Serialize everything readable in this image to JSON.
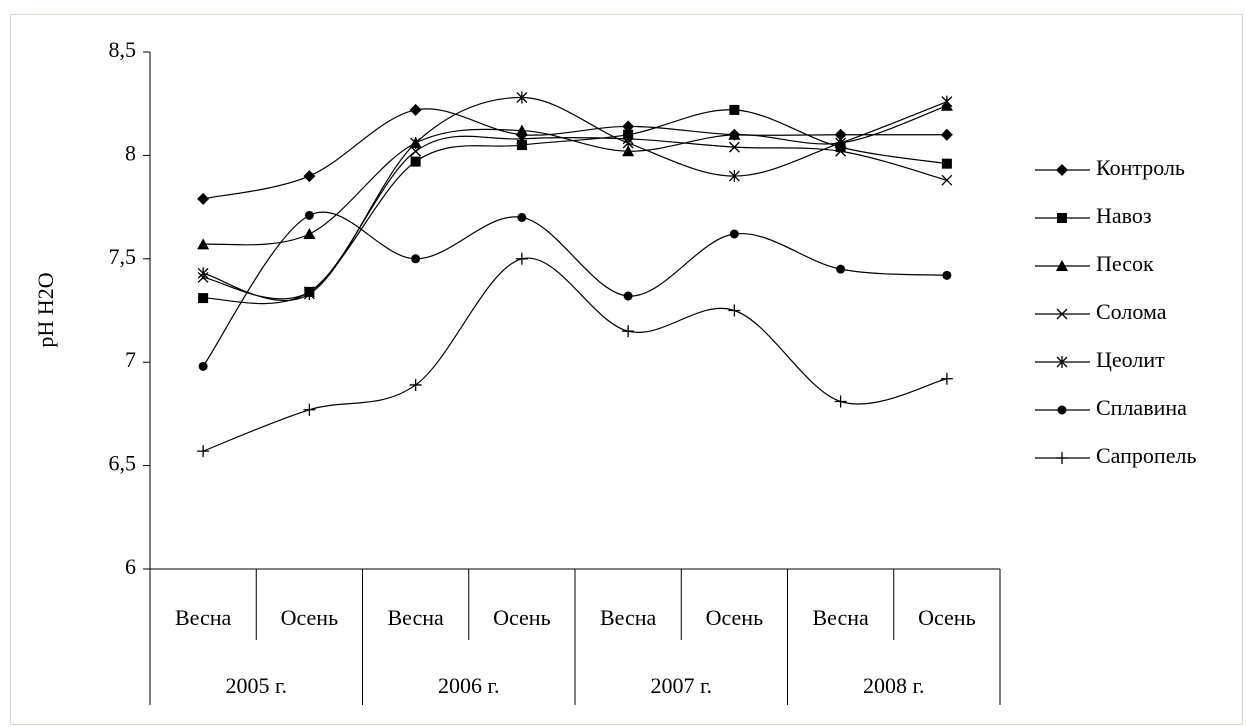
{
  "chart_data": {
    "type": "line",
    "y_label": "pH H2O",
    "categories": [
      "Весна",
      "Осень",
      "Весна",
      "Осень",
      "Весна",
      "Осень",
      "Весна",
      "Осень"
    ],
    "groups": [
      "2005 г.",
      "2006 г.",
      "2007 г.",
      "2008 г."
    ],
    "ylim": [
      6,
      8.5
    ],
    "yticks": [
      6,
      {
        "value": 6.5,
        "label": "6,5"
      },
      7,
      {
        "value": 7.5,
        "label": "7,5"
      },
      8,
      {
        "value": 8.5,
        "label": "8,5"
      }
    ],
    "smooth": true,
    "series": [
      {
        "name": "Контроль",
        "color": "#000000",
        "marker": "diamond",
        "values": [
          7.79,
          7.9,
          8.22,
          8.1,
          8.14,
          8.1,
          8.1,
          8.1
        ]
      },
      {
        "name": "Навоз",
        "color": "#000000",
        "marker": "square",
        "values": [
          7.31,
          7.34,
          7.97,
          8.05,
          8.1,
          8.22,
          8.04,
          7.96
        ]
      },
      {
        "name": "Песок",
        "color": "#000000",
        "marker": "triangle",
        "values": [
          7.57,
          7.62,
          8.06,
          8.12,
          8.02,
          8.1,
          8.06,
          8.24
        ]
      },
      {
        "name": "Солома",
        "color": "#000000",
        "marker": "x",
        "values": [
          7.41,
          7.34,
          8.02,
          8.08,
          8.08,
          8.04,
          8.02,
          7.88
        ]
      },
      {
        "name": "Цеолит",
        "color": "#000000",
        "marker": "asterisk",
        "values": [
          7.43,
          7.33,
          8.06,
          8.28,
          8.06,
          7.9,
          8.06,
          8.26
        ]
      },
      {
        "name": "Сплавина",
        "color": "#000000",
        "marker": "circle",
        "values": [
          6.98,
          7.71,
          7.5,
          7.7,
          7.32,
          7.62,
          7.45,
          7.42
        ]
      },
      {
        "name": "Сапропель",
        "color": "#000000",
        "marker": "plus",
        "values": [
          6.57,
          6.77,
          6.89,
          7.5,
          7.15,
          7.25,
          6.81,
          6.92
        ]
      }
    ]
  }
}
